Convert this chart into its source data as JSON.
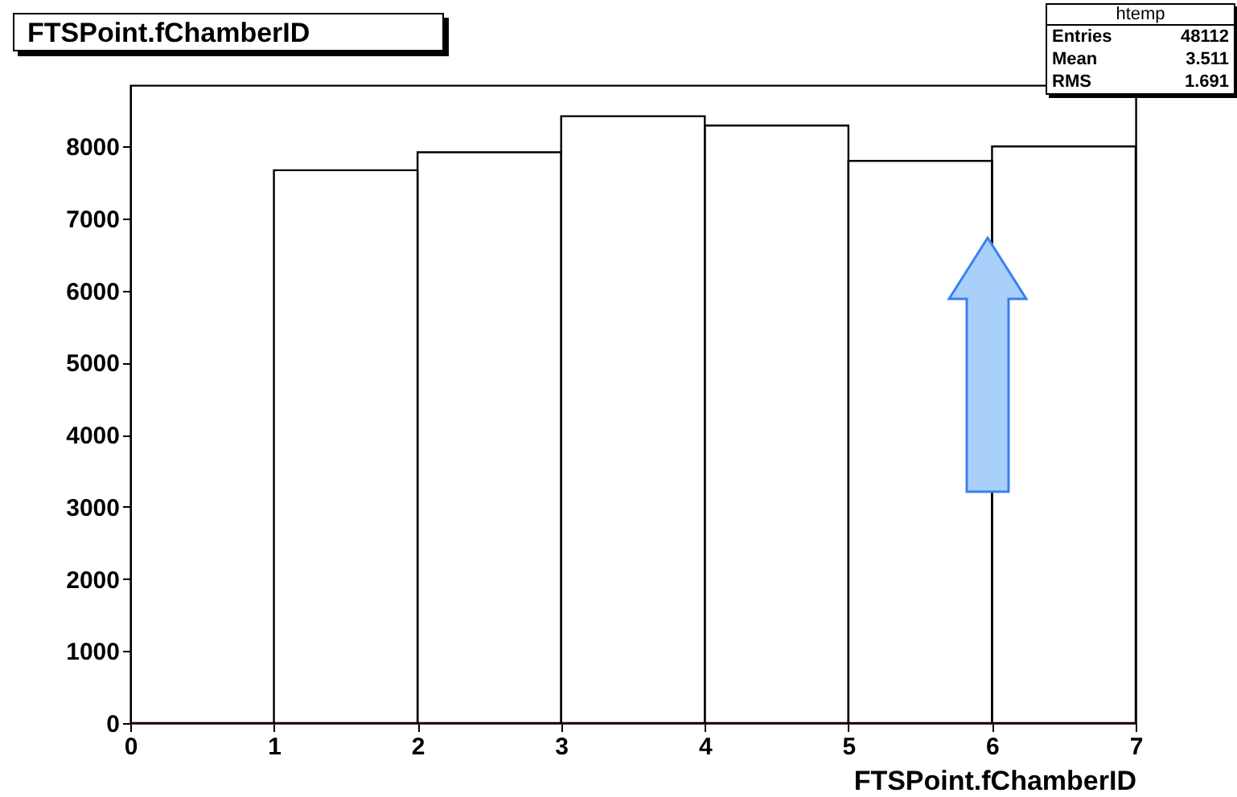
{
  "chart_data": {
    "type": "histogram",
    "title": "FTSPoint.fChamberID",
    "xlabel": "FTSPoint.fChamberID",
    "bins": [
      0,
      1,
      2,
      3,
      4,
      5,
      6,
      7
    ],
    "values": [
      0,
      7670,
      7920,
      8420,
      8290,
      7800,
      8000
    ],
    "color": "#000000",
    "xlim": [
      0,
      7
    ],
    "xticks": [
      0,
      1,
      2,
      3,
      4,
      5,
      6,
      7
    ],
    "ylim": [
      0,
      8850
    ],
    "yticks": [
      0,
      1000,
      2000,
      3000,
      4000,
      5000,
      6000,
      7000,
      8000
    ],
    "grid": false,
    "annotations": [
      "htemp",
      "Entries",
      "48112",
      "Mean",
      "3.511",
      "RMS",
      "1.691"
    ]
  }
}
